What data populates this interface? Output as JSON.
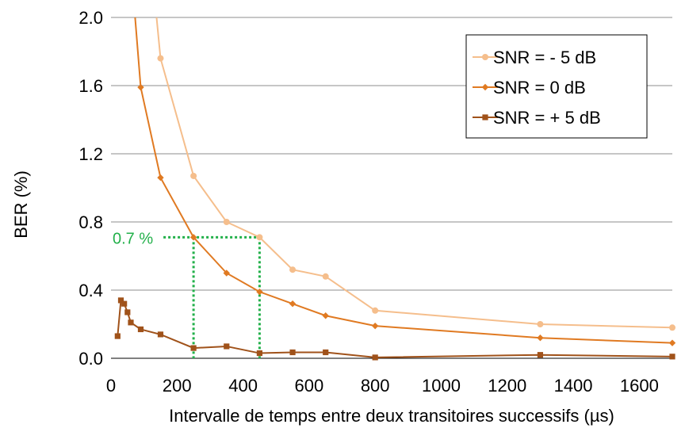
{
  "chart_data": {
    "type": "line",
    "title": "",
    "xlabel": "Intervalle de temps entre deux transitoires successifs (µs)",
    "ylabel": "BER (%)",
    "xlim": [
      0,
      1700
    ],
    "ylim": [
      0,
      2.0
    ],
    "x_ticks": [
      "0",
      "200",
      "400",
      "600",
      "800",
      "1000",
      "1200",
      "1400",
      "1600"
    ],
    "y_ticks": [
      "0.0",
      "0.4",
      "0.8",
      "1.2",
      "1.6",
      "2.0"
    ],
    "grid": "horizontal",
    "legend_position": "top-right",
    "series": [
      {
        "name": "SNR = - 5 dB",
        "color": "#F5BE8C",
        "marker": "circle",
        "x": [
          150,
          250,
          350,
          450,
          550,
          650,
          800,
          1300,
          1700
        ],
        "y": [
          1.76,
          1.07,
          0.8,
          0.71,
          0.52,
          0.48,
          0.28,
          0.2,
          0.18
        ],
        "y_above_axis_start": {
          "x": 138,
          "y": 2.0
        }
      },
      {
        "name": "SNR = 0 dB",
        "color": "#E07A22",
        "marker": "diamond",
        "x": [
          90,
          150,
          250,
          350,
          450,
          550,
          650,
          800,
          1300,
          1700
        ],
        "y": [
          1.59,
          1.06,
          0.71,
          0.5,
          0.39,
          0.32,
          0.25,
          0.19,
          0.12,
          0.09
        ],
        "y_above_axis_start": {
          "x": 73,
          "y": 2.0
        }
      },
      {
        "name": "SNR = + 5 dB",
        "color": "#A0521A",
        "marker": "square",
        "x": [
          20,
          30,
          40,
          50,
          60,
          90,
          150,
          250,
          350,
          450,
          550,
          650,
          800,
          1300,
          1700
        ],
        "y": [
          0.13,
          0.34,
          0.32,
          0.27,
          0.21,
          0.17,
          0.14,
          0.06,
          0.07,
          0.03,
          0.035,
          0.035,
          0.005,
          0.02,
          0.01
        ]
      }
    ],
    "annotations": [
      {
        "label": "0.7 %",
        "color": "#22B04A",
        "y": 0.71,
        "x_points": [
          250,
          450
        ]
      }
    ]
  }
}
